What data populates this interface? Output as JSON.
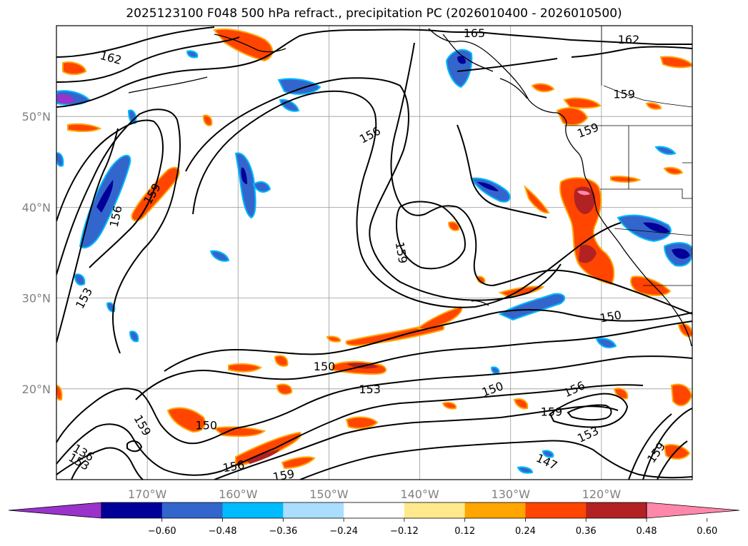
{
  "title": "2025123100 F048 500 hPa refract., precipitation PC (2026010400 - 2026010500)",
  "map": {
    "lon_range": [
      -180,
      -110
    ],
    "lat_range": [
      10,
      60
    ],
    "lon_ticks": [
      {
        "lon": -170,
        "label": "170°W"
      },
      {
        "lon": -160,
        "label": "160°W"
      },
      {
        "lon": -150,
        "label": "150°W"
      },
      {
        "lon": -140,
        "label": "140°W"
      },
      {
        "lon": -130,
        "label": "130°W"
      },
      {
        "lon": -120,
        "label": "120°W"
      }
    ],
    "lat_ticks": [
      {
        "lat": 50,
        "label": "50°N"
      },
      {
        "lat": 40,
        "label": "40°N"
      },
      {
        "lat": 30,
        "label": "30°N"
      },
      {
        "lat": 20,
        "label": "20°N"
      }
    ],
    "grid": true,
    "tick_color": "#808080",
    "contour_labels": [
      {
        "lon": -174,
        "lat": 56.5,
        "text": "162",
        "rot": 15
      },
      {
        "lon": -117,
        "lat": 58.5,
        "text": "162",
        "rot": 0
      },
      {
        "lon": -134,
        "lat": 59.2,
        "text": "165",
        "rot": 0
      },
      {
        "lon": -117.5,
        "lat": 52.5,
        "text": "159",
        "rot": 0
      },
      {
        "lon": -121.5,
        "lat": 48.5,
        "text": "159",
        "rot": -20
      },
      {
        "lon": -145.5,
        "lat": 48,
        "text": "156",
        "rot": -28
      },
      {
        "lon": -169.5,
        "lat": 41.5,
        "text": "159",
        "rot": -60
      },
      {
        "lon": -173.5,
        "lat": 39,
        "text": "156",
        "rot": -78
      },
      {
        "lon": -142,
        "lat": 35,
        "text": "159",
        "rot": 80
      },
      {
        "lon": -177,
        "lat": 30,
        "text": "153",
        "rot": -62
      },
      {
        "lon": -119,
        "lat": 28,
        "text": "150",
        "rot": -10
      },
      {
        "lon": -150.5,
        "lat": 22.5,
        "text": "150",
        "rot": 0
      },
      {
        "lon": -145.5,
        "lat": 20,
        "text": "153",
        "rot": 0
      },
      {
        "lon": -132,
        "lat": 20,
        "text": "150",
        "rot": -20
      },
      {
        "lon": -123,
        "lat": 20,
        "text": "156",
        "rot": -25
      },
      {
        "lon": -125.5,
        "lat": 17.5,
        "text": "159",
        "rot": 0
      },
      {
        "lon": -163.5,
        "lat": 16,
        "text": "150",
        "rot": 0
      },
      {
        "lon": -170.5,
        "lat": 16,
        "text": "159",
        "rot": 60
      },
      {
        "lon": -121.5,
        "lat": 15,
        "text": "153",
        "rot": -25
      },
      {
        "lon": -177,
        "lat": 13,
        "text": "136",
        "rot": 30
      },
      {
        "lon": -177.5,
        "lat": 12,
        "text": "153",
        "rot": 30
      },
      {
        "lon": -160.5,
        "lat": 11.5,
        "text": "156",
        "rot": -10
      },
      {
        "lon": -155,
        "lat": 10.5,
        "text": "159",
        "rot": -10
      },
      {
        "lon": -126,
        "lat": 12,
        "text": "147",
        "rot": 25
      },
      {
        "lon": -114,
        "lat": 13,
        "text": "159",
        "rot": -55
      }
    ]
  },
  "colorbar": {
    "colors": [
      "#9933cc",
      "#000099",
      "#3366cc",
      "#00bbff",
      "#aaddff",
      "#ffffff",
      "#ffe98c",
      "#ffa500",
      "#ff4500",
      "#b22222",
      "#ff88aa"
    ],
    "tick_labels": [
      "−0.60",
      "−0.48",
      "−0.36",
      "−0.24",
      "−0.12",
      "0.12",
      "0.24",
      "0.36",
      "0.48",
      "0.60"
    ],
    "extend": "both"
  }
}
